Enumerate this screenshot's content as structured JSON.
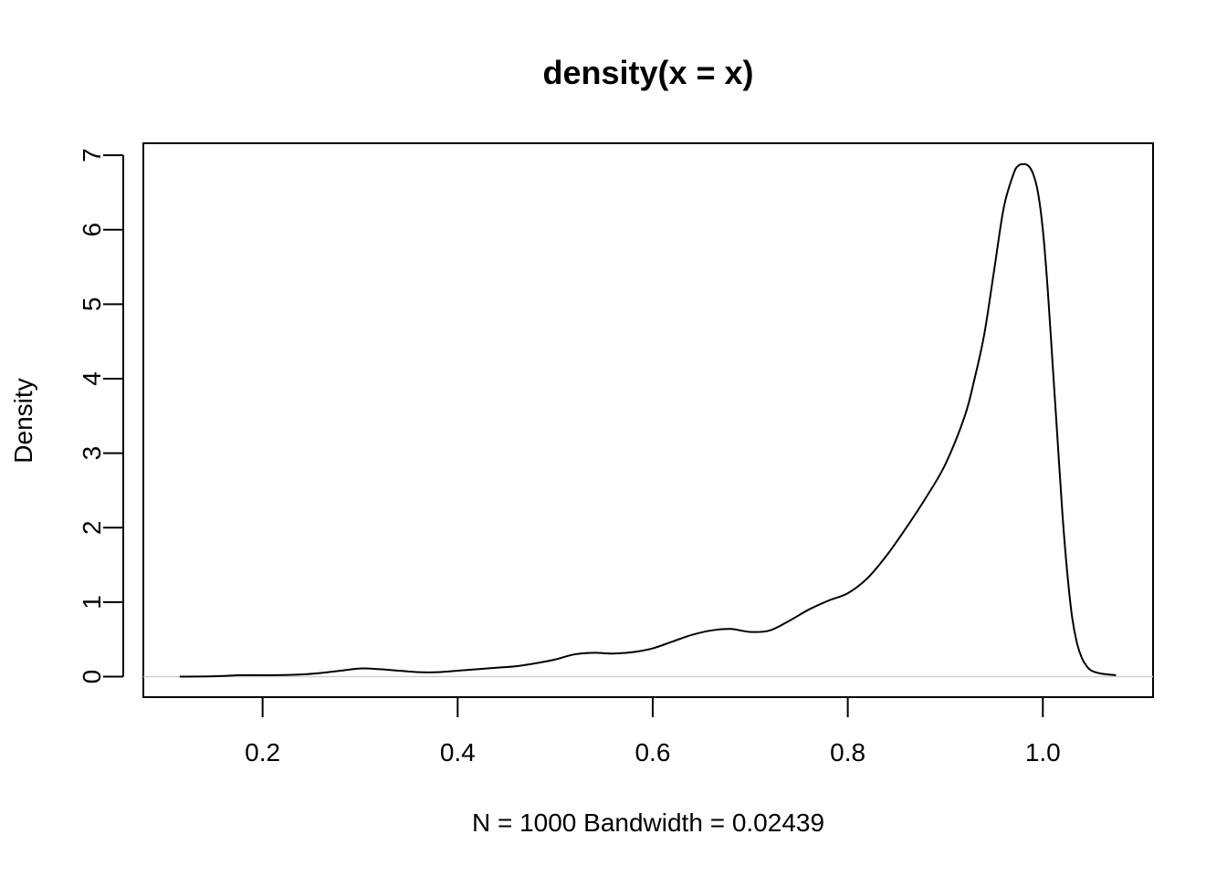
{
  "chart_data": {
    "type": "line",
    "title": "density(x = x)",
    "xlabel": "N = 1000   Bandwidth = 0.02439",
    "ylabel": "Density",
    "xlim": [
      0.0777,
      1.113
    ],
    "ylim": [
      -0.275,
      7.16
    ],
    "x_ticks": [
      0.2,
      0.4,
      0.6,
      0.8,
      1.0
    ],
    "x_tick_labels": [
      "0.2",
      "0.4",
      "0.6",
      "0.8",
      "1.0"
    ],
    "y_ticks": [
      0,
      1,
      2,
      3,
      4,
      5,
      6,
      7
    ],
    "y_tick_labels": [
      "0",
      "1",
      "2",
      "3",
      "4",
      "5",
      "6",
      "7"
    ],
    "grid": false,
    "baseline_y": 0,
    "line_color": "#000000",
    "baseline_color": "#d0d0d0",
    "series": [
      {
        "x": [
          0.115,
          0.15,
          0.18,
          0.21,
          0.24,
          0.26,
          0.28,
          0.3,
          0.32,
          0.34,
          0.36,
          0.38,
          0.4,
          0.42,
          0.44,
          0.46,
          0.48,
          0.5,
          0.52,
          0.54,
          0.56,
          0.58,
          0.6,
          0.62,
          0.64,
          0.66,
          0.68,
          0.7,
          0.72,
          0.74,
          0.76,
          0.78,
          0.8,
          0.82,
          0.84,
          0.86,
          0.88,
          0.9,
          0.92,
          0.93,
          0.94,
          0.95,
          0.96,
          0.97,
          0.975,
          0.98,
          0.985,
          0.99,
          0.995,
          1.0,
          1.005,
          1.01,
          1.015,
          1.02,
          1.025,
          1.03,
          1.035,
          1.04,
          1.045,
          1.05,
          1.06,
          1.075
        ],
        "y": [
          0.0,
          0.005,
          0.02,
          0.02,
          0.03,
          0.05,
          0.08,
          0.11,
          0.1,
          0.08,
          0.06,
          0.06,
          0.08,
          0.1,
          0.12,
          0.14,
          0.18,
          0.23,
          0.3,
          0.32,
          0.31,
          0.33,
          0.38,
          0.47,
          0.56,
          0.62,
          0.64,
          0.6,
          0.62,
          0.75,
          0.9,
          1.02,
          1.12,
          1.32,
          1.63,
          2.0,
          2.4,
          2.85,
          3.5,
          4.0,
          4.6,
          5.45,
          6.3,
          6.75,
          6.86,
          6.88,
          6.86,
          6.75,
          6.5,
          6.0,
          5.2,
          4.2,
          3.2,
          2.2,
          1.4,
          0.8,
          0.45,
          0.25,
          0.14,
          0.08,
          0.04,
          0.02
        ]
      }
    ]
  }
}
